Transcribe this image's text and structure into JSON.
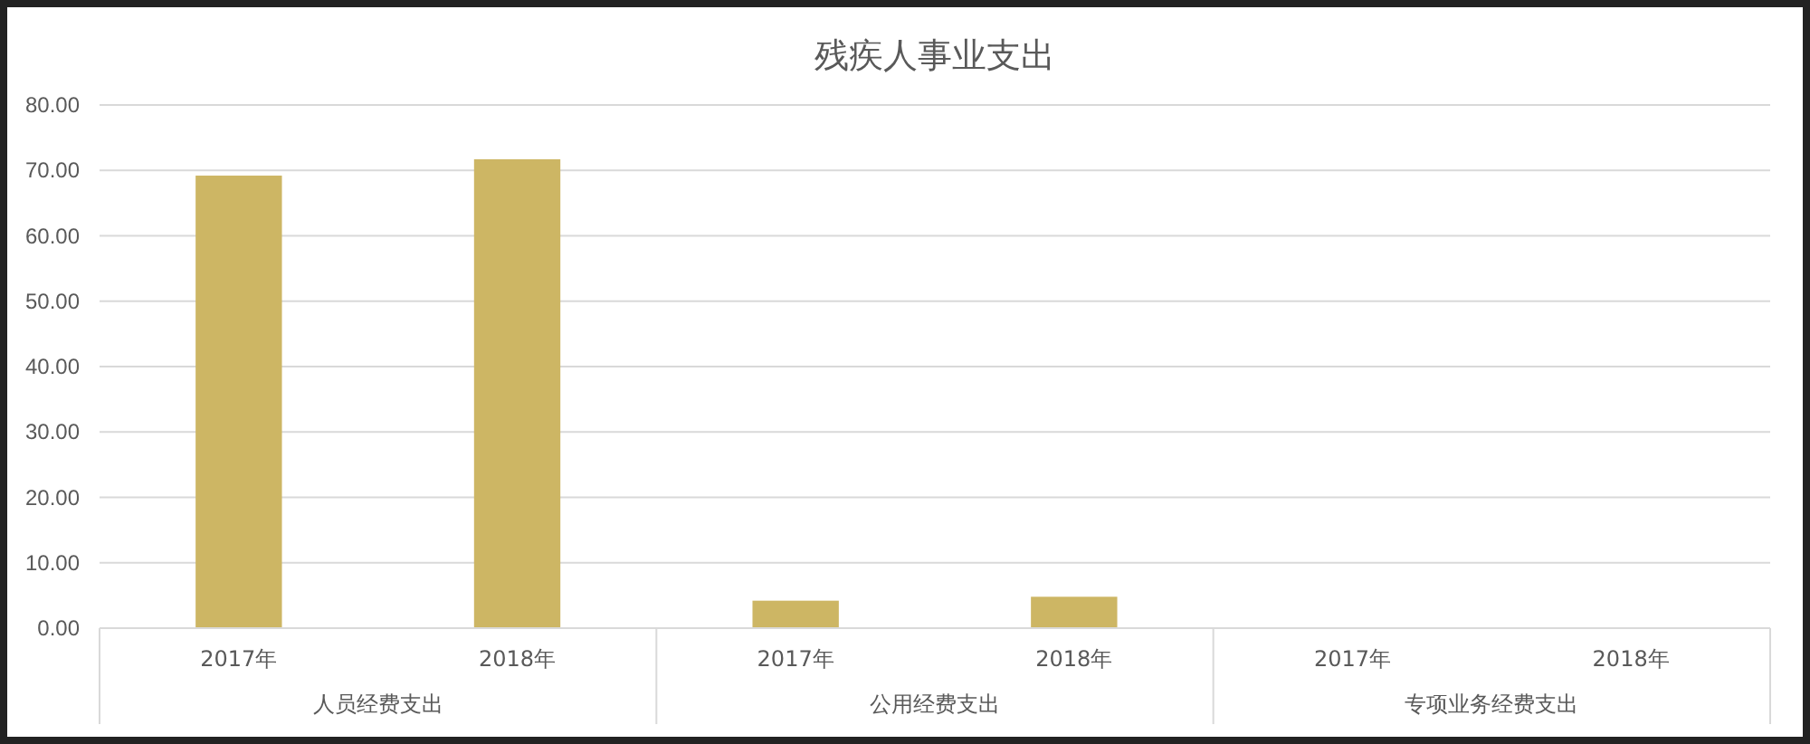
{
  "chart_data": {
    "type": "bar",
    "title": "残疾人事业支出",
    "categories": [
      "2017年",
      "2018年",
      "2017年",
      "2018年",
      "2017年",
      "2018年"
    ],
    "values": [
      69.2,
      71.7,
      4.2,
      4.8,
      0,
      0
    ],
    "color": "#cdb664",
    "ylim": [
      0,
      80
    ],
    "yticks": [
      {
        "value": 0,
        "label": "0.00"
      },
      {
        "value": 10,
        "label": "10.00"
      },
      {
        "value": 20,
        "label": "20.00"
      },
      {
        "value": 30,
        "label": "30.00"
      },
      {
        "value": 40,
        "label": "40.00"
      },
      {
        "value": 50,
        "label": "50.00"
      },
      {
        "value": 60,
        "label": "60.00"
      },
      {
        "value": 70,
        "label": "70.00"
      },
      {
        "value": 80,
        "label": "80.00"
      }
    ],
    "grid": "y",
    "annotations": [
      "人员经费支出",
      "公用经费支出",
      "专项业务经费支出"
    ]
  }
}
